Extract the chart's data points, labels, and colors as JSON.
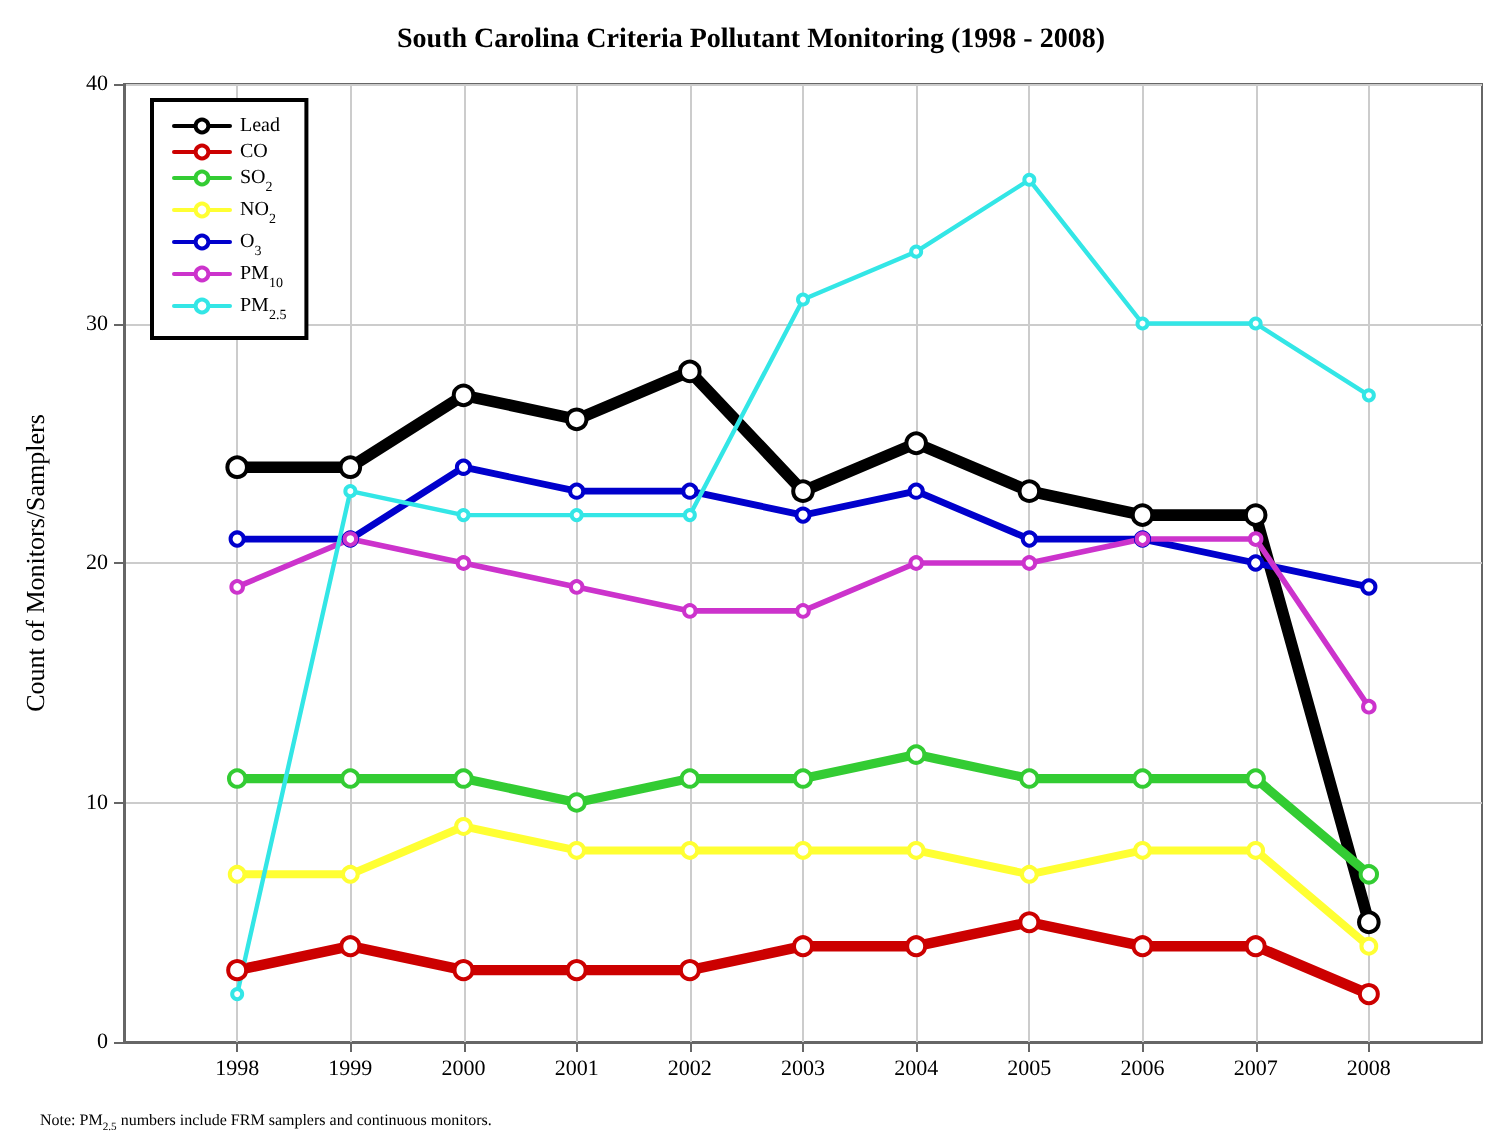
{
  "chart_data": {
    "type": "line",
    "title": "South Carolina Criteria Pollutant Monitoring (1998 - 2008)",
    "ylabel": "Count of Monitors/Samplers",
    "x": [
      1998,
      1999,
      2000,
      2001,
      2002,
      2003,
      2004,
      2005,
      2006,
      2007,
      2008
    ],
    "xlim": [
      1997,
      2009
    ],
    "xticks": [
      1998,
      1999,
      2000,
      2001,
      2002,
      2003,
      2004,
      2005,
      2006,
      2007,
      2008
    ],
    "ylim": [
      0,
      40
    ],
    "yticks": [
      0,
      10,
      20,
      30,
      40
    ],
    "series": [
      {
        "name": "Lead",
        "color": "#000000",
        "values": [
          24,
          24,
          27,
          26,
          28,
          23,
          25,
          23,
          22,
          22,
          5
        ]
      },
      {
        "name": "CO",
        "color": "#cc0000",
        "values": [
          3,
          4,
          3,
          3,
          3,
          4,
          4,
          5,
          4,
          4,
          2
        ]
      },
      {
        "name": "SO$_{2}$",
        "color": "#33cc33",
        "values": [
          11,
          11,
          11,
          10,
          11,
          11,
          12,
          11,
          11,
          11,
          7
        ]
      },
      {
        "name": "NO$_{2}$",
        "color": "#ffff33",
        "values": [
          7,
          7,
          9,
          8,
          8,
          8,
          8,
          7,
          8,
          8,
          4
        ]
      },
      {
        "name": "O$_{3}$",
        "color": "#0000cc",
        "values": [
          21,
          21,
          24,
          23,
          23,
          22,
          23,
          21,
          21,
          20,
          19
        ]
      },
      {
        "name": "PM$_{10}$",
        "color": "#cc33cc",
        "values": [
          19,
          21,
          20,
          19,
          18,
          18,
          20,
          20,
          21,
          21,
          14
        ]
      },
      {
        "name": "PM$_{2.5}$",
        "color": "#33e6e6",
        "values": [
          2,
          23,
          22,
          22,
          22,
          31,
          33,
          36,
          30,
          30,
          27
        ]
      }
    ],
    "grid": true,
    "legend": "top left",
    "marker": "circle",
    "line_style": "solid",
    "annotations": [
      "Note: PM$_{2.5}$ numbers include FRM samplers and continuous monitors."
    ]
  }
}
